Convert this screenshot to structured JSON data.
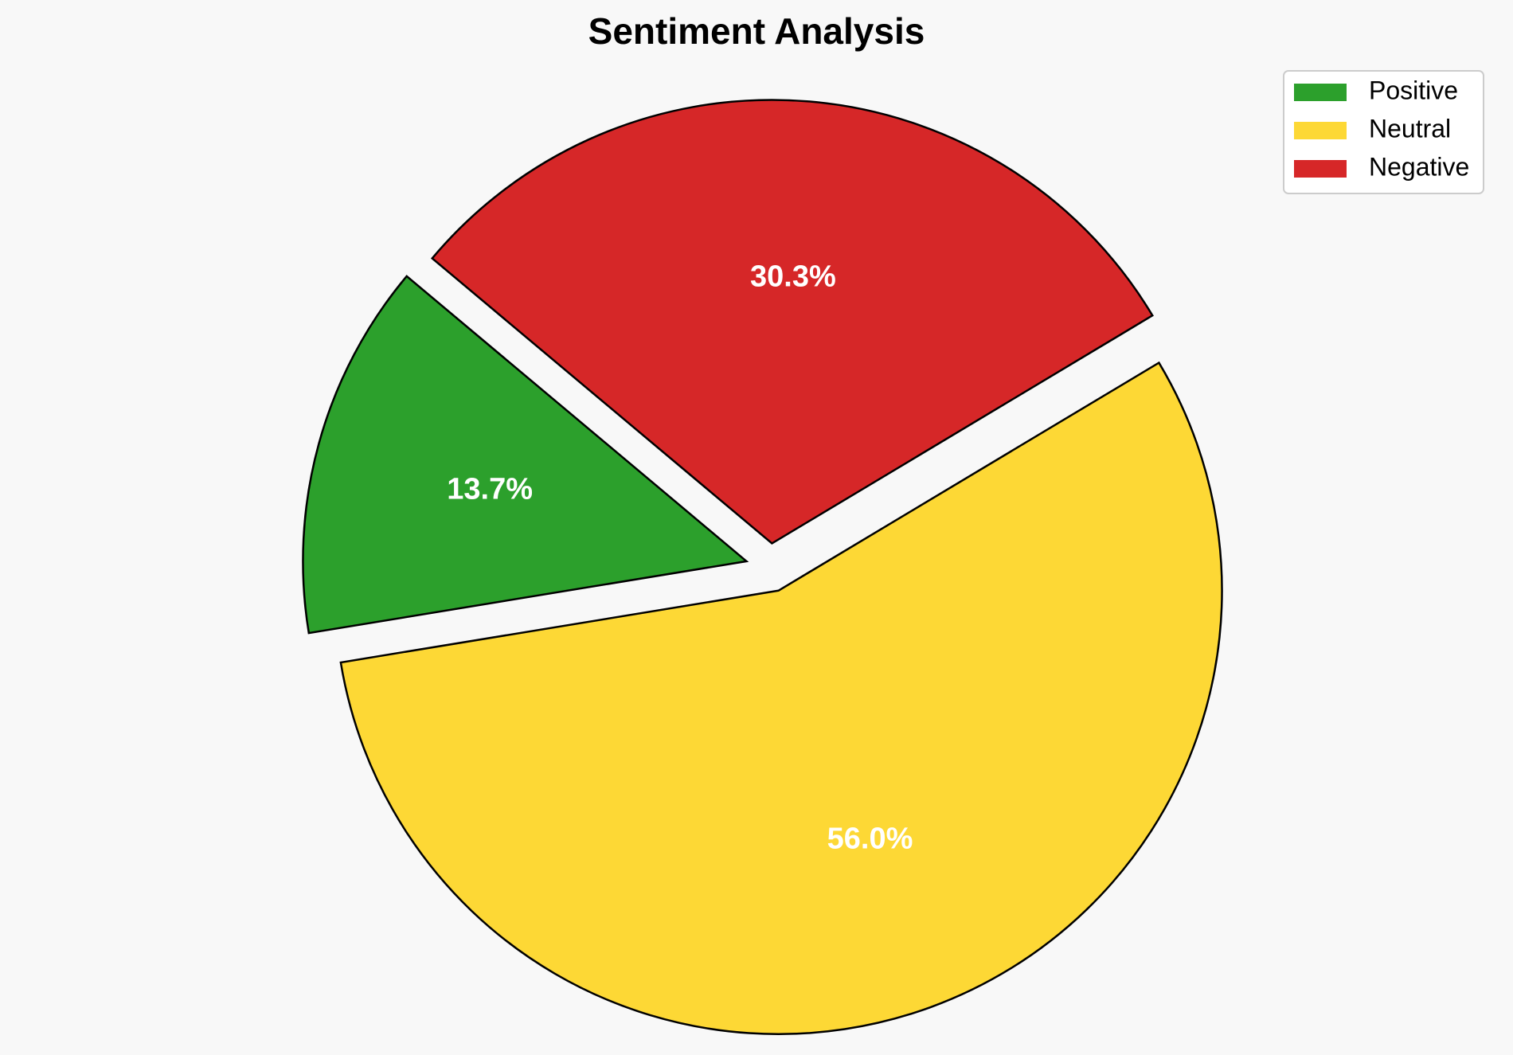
{
  "chart_data": {
    "type": "pie",
    "title": "Sentiment Analysis",
    "slices": [
      {
        "label": "Positive",
        "value": 13.7,
        "pct_label": "13.7%",
        "color": "#2ca02c"
      },
      {
        "label": "Neutral",
        "value": 56.0,
        "pct_label": "56.0%",
        "color": "#fdd835"
      },
      {
        "label": "Negative",
        "value": 30.3,
        "pct_label": "30.3%",
        "color": "#d62728"
      }
    ],
    "exploded": true,
    "start_angle_deg": 140,
    "legend": {
      "placement": "top-right",
      "entries": [
        "Positive",
        "Neutral",
        "Negative"
      ]
    }
  }
}
